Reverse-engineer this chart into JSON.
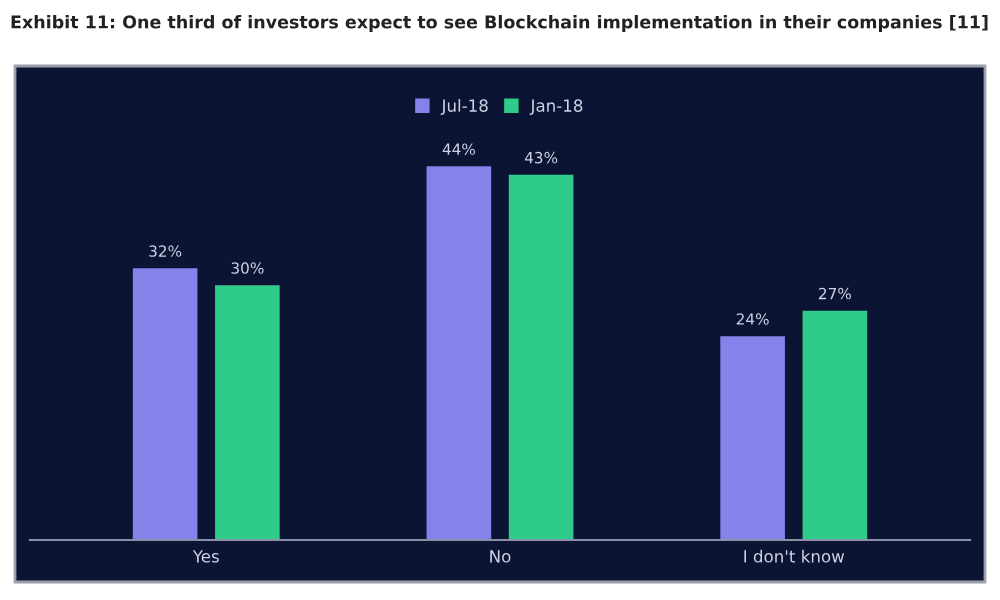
{
  "chart_data": {
    "type": "bar",
    "title": "Exhibit 11: One third of investors expect to see Blockchain implementation in their companies [11]",
    "categories": [
      "Yes",
      "No",
      "I don't know"
    ],
    "series": [
      {
        "name": "Jul-18",
        "color": "#8383ea",
        "values": [
          32,
          44,
          24
        ],
        "value_labels": [
          "32%",
          "44%",
          "24%"
        ]
      },
      {
        "name": "Jan-18",
        "color": "#2fcb8b",
        "values": [
          30,
          43,
          27
        ],
        "value_labels": [
          "30%",
          "43%",
          "27%"
        ]
      }
    ],
    "legend": "top"
  }
}
